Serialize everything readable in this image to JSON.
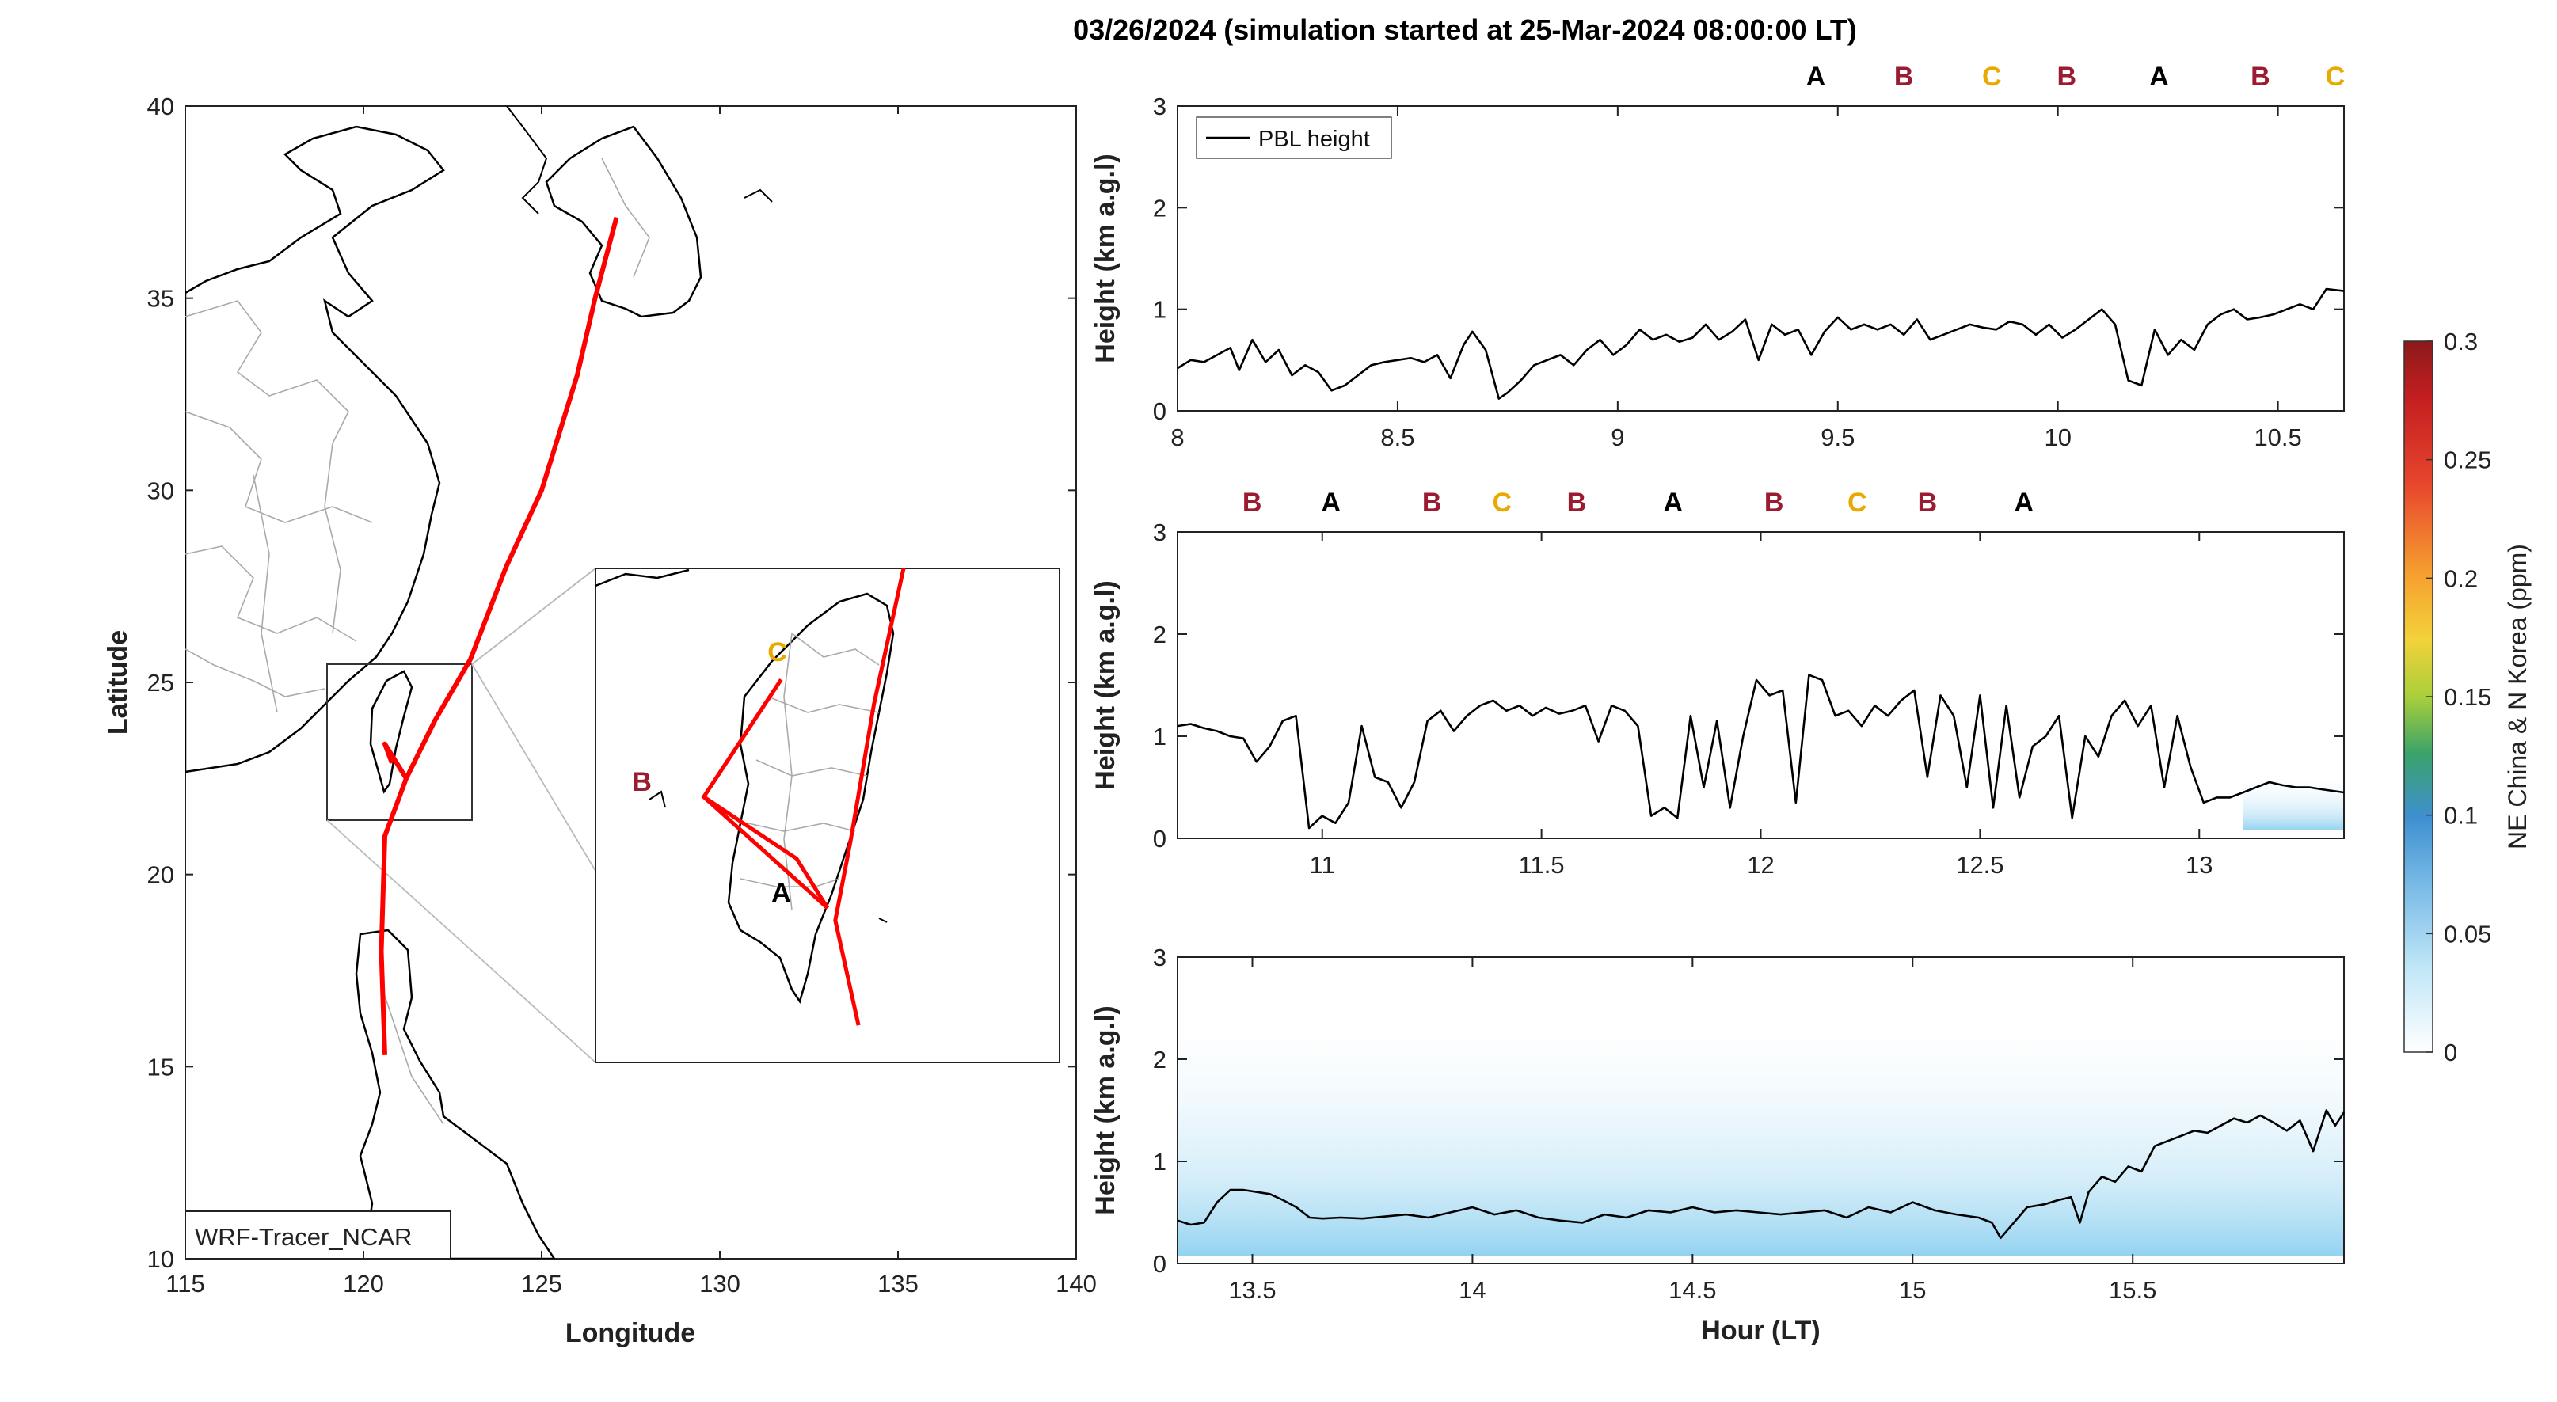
{
  "title": "03/26/2024 (simulation started at 25-Mar-2024 08:00:00 LT)",
  "colors": {
    "track": "#ff0000",
    "A": "#000000",
    "B": "#9b1b30",
    "C": "#e8a900",
    "pbl": "#000000",
    "tracer_fill": "#6fc4ec"
  },
  "map": {
    "xlabel": "Longitude",
    "ylabel": "Latitude",
    "xlim": [
      115,
      140
    ],
    "ylim": [
      10,
      40
    ],
    "xticks": [
      "115",
      "120",
      "125",
      "130",
      "135",
      "140"
    ],
    "yticks": [
      "10",
      "15",
      "20",
      "25",
      "30",
      "35",
      "40"
    ],
    "source_label": "WRF-Tracer_NCAR",
    "track": [
      [
        120.6,
        15.3
      ],
      [
        120.5,
        18.0
      ],
      [
        120.6,
        21.0
      ],
      [
        121.2,
        22.5
      ],
      [
        122.0,
        24.0
      ],
      [
        123.0,
        25.6
      ],
      [
        124.0,
        28.0
      ],
      [
        125.0,
        30.0
      ],
      [
        126.0,
        33.0
      ],
      [
        126.5,
        35.0
      ],
      [
        127.1,
        37.1
      ]
    ],
    "track_branch": [
      [
        121.2,
        22.5
      ],
      [
        120.6,
        23.4
      ],
      [
        120.8,
        22.9
      ]
    ],
    "inset": {
      "region": {
        "lon": [
          119.0,
          122.6
        ],
        "lat": [
          21.5,
          25.5
        ]
      },
      "track": [
        [
          122.4,
          17.6
        ],
        [
          122.1,
          19.3
        ],
        [
          122.3,
          20.6
        ],
        [
          122.6,
          22.8
        ],
        [
          123.0,
          25.1
        ],
        [
          125.0,
          28.1
        ]
      ],
      "branch": [
        [
          122.0,
          19.5
        ],
        [
          120.4,
          21.3
        ],
        [
          121.4,
          23.2
        ]
      ],
      "branch2": [
        [
          120.4,
          21.3
        ],
        [
          121.6,
          20.3
        ],
        [
          122.0,
          19.5
        ]
      ],
      "labels": [
        {
          "text": "C",
          "lon": 121.35,
          "lat": 23.5,
          "color_key": "C"
        },
        {
          "text": "B",
          "lon": 119.6,
          "lat": 21.4,
          "color_key": "B"
        },
        {
          "text": "A",
          "lon": 121.4,
          "lat": 19.6,
          "color_key": "A"
        }
      ]
    }
  },
  "colorbar": {
    "label": "NE China & N Korea (ppm)",
    "ticks": [
      "0",
      "0.05",
      "0.1",
      "0.15",
      "0.2",
      "0.25",
      "0.3"
    ],
    "range": [
      0,
      0.3
    ]
  },
  "chart_data": [
    {
      "type": "line",
      "title": "",
      "xlabel": "",
      "ylabel": "Height (km a.g.l)",
      "xlim": [
        8,
        10.65
      ],
      "ylim": [
        0,
        3
      ],
      "xticks": [
        "8",
        "8.5",
        "9",
        "9.5",
        "10",
        "10.5"
      ],
      "yticks": [
        "0",
        "1",
        "2",
        "3"
      ],
      "legend": "PBL height",
      "legend_position": "top-left",
      "markers": [
        {
          "text": "A",
          "x": 9.45,
          "color_key": "A"
        },
        {
          "text": "B",
          "x": 9.65,
          "color_key": "B"
        },
        {
          "text": "C",
          "x": 9.85,
          "color_key": "C"
        },
        {
          "text": "B",
          "x": 10.02,
          "color_key": "B"
        },
        {
          "text": "A",
          "x": 10.23,
          "color_key": "A"
        },
        {
          "text": "B",
          "x": 10.46,
          "color_key": "B"
        },
        {
          "text": "C",
          "x": 10.63,
          "color_key": "C"
        }
      ],
      "series": [
        {
          "name": "PBL height",
          "x": [
            8.0,
            8.03,
            8.06,
            8.09,
            8.12,
            8.14,
            8.17,
            8.2,
            8.23,
            8.26,
            8.29,
            8.32,
            8.35,
            8.38,
            8.41,
            8.44,
            8.47,
            8.5,
            8.53,
            8.56,
            8.59,
            8.62,
            8.65,
            8.67,
            8.7,
            8.73,
            8.75,
            8.78,
            8.81,
            8.84,
            8.87,
            8.9,
            8.93,
            8.96,
            8.99,
            9.02,
            9.05,
            9.08,
            9.11,
            9.14,
            9.17,
            9.2,
            9.23,
            9.26,
            9.29,
            9.32,
            9.35,
            9.38,
            9.41,
            9.44,
            9.47,
            9.5,
            9.53,
            9.56,
            9.59,
            9.62,
            9.65,
            9.68,
            9.71,
            9.74,
            9.77,
            9.8,
            9.83,
            9.86,
            9.89,
            9.92,
            9.95,
            9.98,
            10.01,
            10.04,
            10.07,
            10.1,
            10.13,
            10.16,
            10.19,
            10.22,
            10.25,
            10.28,
            10.31,
            10.34,
            10.37,
            10.4,
            10.43,
            10.46,
            10.49,
            10.52,
            10.55,
            10.58,
            10.61,
            10.65
          ],
          "values": [
            0.42,
            0.5,
            0.48,
            0.55,
            0.62,
            0.4,
            0.7,
            0.48,
            0.6,
            0.35,
            0.45,
            0.38,
            0.2,
            0.25,
            0.35,
            0.45,
            0.48,
            0.5,
            0.52,
            0.48,
            0.55,
            0.32,
            0.65,
            0.78,
            0.6,
            0.12,
            0.18,
            0.3,
            0.45,
            0.5,
            0.55,
            0.45,
            0.6,
            0.7,
            0.55,
            0.65,
            0.8,
            0.7,
            0.75,
            0.68,
            0.72,
            0.85,
            0.7,
            0.78,
            0.9,
            0.5,
            0.85,
            0.75,
            0.8,
            0.55,
            0.78,
            0.92,
            0.8,
            0.85,
            0.8,
            0.85,
            0.75,
            0.9,
            0.7,
            0.75,
            0.8,
            0.85,
            0.82,
            0.8,
            0.88,
            0.85,
            0.75,
            0.85,
            0.72,
            0.8,
            0.9,
            1.0,
            0.85,
            0.3,
            0.25,
            0.8,
            0.55,
            0.7,
            0.6,
            0.85,
            0.95,
            1.0,
            0.9,
            0.92,
            0.95,
            1.0,
            1.05,
            1.0,
            1.2,
            1.18
          ]
        }
      ]
    },
    {
      "type": "line",
      "title": "",
      "xlabel": "",
      "ylabel": "Height (km a.g.l)",
      "xlim": [
        10.67,
        13.33
      ],
      "ylim": [
        0,
        3
      ],
      "xticks": [
        "11",
        "11.5",
        "12",
        "12.5",
        "13"
      ],
      "yticks": [
        "0",
        "1",
        "2",
        "3"
      ],
      "markers": [
        {
          "text": "B",
          "x": 10.84,
          "color_key": "B"
        },
        {
          "text": "A",
          "x": 11.02,
          "color_key": "A"
        },
        {
          "text": "B",
          "x": 11.25,
          "color_key": "B"
        },
        {
          "text": "C",
          "x": 11.41,
          "color_key": "C"
        },
        {
          "text": "B",
          "x": 11.58,
          "color_key": "B"
        },
        {
          "text": "A",
          "x": 11.8,
          "color_key": "A"
        },
        {
          "text": "B",
          "x": 12.03,
          "color_key": "B"
        },
        {
          "text": "C",
          "x": 12.22,
          "color_key": "C"
        },
        {
          "text": "B",
          "x": 12.38,
          "color_key": "B"
        },
        {
          "text": "A",
          "x": 12.6,
          "color_key": "A"
        }
      ],
      "series": [
        {
          "name": "PBL height",
          "x": [
            10.67,
            10.7,
            10.73,
            10.76,
            10.79,
            10.82,
            10.85,
            10.88,
            10.91,
            10.94,
            10.97,
            11.0,
            11.03,
            11.06,
            11.09,
            11.12,
            11.15,
            11.18,
            11.21,
            11.24,
            11.27,
            11.3,
            11.33,
            11.36,
            11.39,
            11.42,
            11.45,
            11.48,
            11.51,
            11.54,
            11.57,
            11.6,
            11.63,
            11.66,
            11.69,
            11.72,
            11.75,
            11.78,
            11.81,
            11.84,
            11.87,
            11.9,
            11.93,
            11.96,
            11.99,
            12.02,
            12.05,
            12.08,
            12.11,
            12.14,
            12.17,
            12.2,
            12.23,
            12.26,
            12.29,
            12.32,
            12.35,
            12.38,
            12.41,
            12.44,
            12.47,
            12.5,
            12.53,
            12.56,
            12.59,
            12.62,
            12.65,
            12.68,
            12.71,
            12.74,
            12.77,
            12.8,
            12.83,
            12.86,
            12.89,
            12.92,
            12.95,
            12.98,
            13.01,
            13.04,
            13.07,
            13.1,
            13.13,
            13.16,
            13.19,
            13.22,
            13.25,
            13.28,
            13.33
          ],
          "values": [
            1.1,
            1.12,
            1.08,
            1.05,
            1.0,
            0.98,
            0.75,
            0.9,
            1.15,
            1.2,
            0.1,
            0.22,
            0.15,
            0.35,
            1.1,
            0.6,
            0.55,
            0.3,
            0.55,
            1.15,
            1.25,
            1.05,
            1.2,
            1.3,
            1.35,
            1.25,
            1.3,
            1.2,
            1.28,
            1.22,
            1.25,
            1.3,
            0.95,
            1.3,
            1.25,
            1.1,
            0.22,
            0.3,
            0.2,
            1.2,
            0.5,
            1.15,
            0.3,
            1.0,
            1.55,
            1.4,
            1.45,
            0.35,
            1.6,
            1.55,
            1.2,
            1.25,
            1.1,
            1.3,
            1.2,
            1.35,
            1.45,
            0.6,
            1.4,
            1.2,
            0.5,
            1.4,
            0.3,
            1.3,
            0.4,
            0.9,
            1.0,
            1.2,
            0.2,
            1.0,
            0.8,
            1.2,
            1.35,
            1.1,
            1.3,
            0.5,
            1.2,
            0.7,
            0.35,
            0.4,
            0.4,
            0.45,
            0.5,
            0.55,
            0.52,
            0.5,
            0.5,
            0.48,
            0.45
          ]
        }
      ],
      "tracer": {
        "x_start": 13.1,
        "x_end": 13.33,
        "height_km": 0.55,
        "level": 0.03
      }
    },
    {
      "type": "line",
      "title": "",
      "xlabel": "Hour (LT)",
      "ylabel": "Height (km a.g.l)",
      "xlim": [
        13.33,
        15.98
      ],
      "ylim": [
        0,
        3
      ],
      "xticks": [
        "13.5",
        "14",
        "14.5",
        "15",
        "15.5"
      ],
      "yticks": [
        "0",
        "1",
        "2",
        "3"
      ],
      "series": [
        {
          "name": "PBL height",
          "x": [
            13.33,
            13.36,
            13.39,
            13.42,
            13.45,
            13.48,
            13.51,
            13.54,
            13.57,
            13.6,
            13.63,
            13.66,
            13.7,
            13.75,
            13.8,
            13.85,
            13.9,
            13.95,
            14.0,
            14.05,
            14.1,
            14.15,
            14.2,
            14.25,
            14.3,
            14.35,
            14.4,
            14.45,
            14.5,
            14.55,
            14.6,
            14.65,
            14.7,
            14.75,
            14.8,
            14.85,
            14.9,
            14.95,
            15.0,
            15.05,
            15.1,
            15.15,
            15.18,
            15.2,
            15.23,
            15.26,
            15.3,
            15.33,
            15.36,
            15.38,
            15.4,
            15.43,
            15.46,
            15.49,
            15.52,
            15.55,
            15.58,
            15.61,
            15.64,
            15.67,
            15.7,
            15.73,
            15.76,
            15.79,
            15.82,
            15.85,
            15.88,
            15.91,
            15.94,
            15.96,
            15.98
          ],
          "values": [
            0.42,
            0.38,
            0.4,
            0.6,
            0.72,
            0.72,
            0.7,
            0.68,
            0.62,
            0.55,
            0.45,
            0.44,
            0.45,
            0.44,
            0.46,
            0.48,
            0.45,
            0.5,
            0.55,
            0.48,
            0.52,
            0.45,
            0.42,
            0.4,
            0.48,
            0.45,
            0.52,
            0.5,
            0.55,
            0.5,
            0.52,
            0.5,
            0.48,
            0.5,
            0.52,
            0.45,
            0.55,
            0.5,
            0.6,
            0.52,
            0.48,
            0.45,
            0.4,
            0.25,
            0.4,
            0.55,
            0.58,
            0.62,
            0.65,
            0.4,
            0.7,
            0.85,
            0.8,
            0.95,
            0.9,
            1.15,
            1.2,
            1.25,
            1.3,
            1.28,
            1.35,
            1.42,
            1.38,
            1.45,
            1.38,
            1.3,
            1.4,
            1.1,
            1.5,
            1.35,
            1.48
          ]
        }
      ],
      "tracer": {
        "x_start": 13.33,
        "x_end": 15.98,
        "height_km": 2.2,
        "level": 0.05
      }
    }
  ]
}
